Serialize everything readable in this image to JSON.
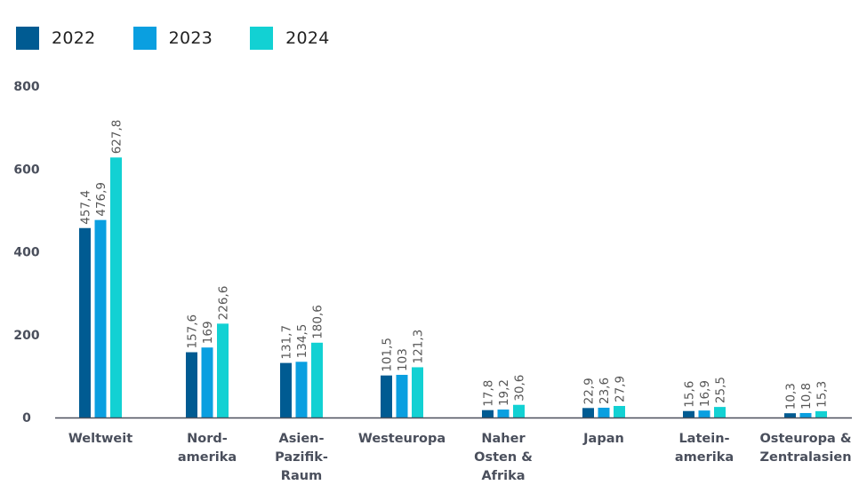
{
  "chart_data": {
    "type": "bar",
    "title": "",
    "xlabel": "",
    "ylabel": "",
    "ylim": [
      0,
      800
    ],
    "yticks": [
      "0",
      "200",
      "400",
      "600",
      "800"
    ],
    "ytick_values": [
      0,
      200,
      400,
      600,
      800
    ],
    "grid": false,
    "legend_position": "top-left",
    "categories": [
      [
        "Weltweit"
      ],
      [
        "Nord-",
        "amerika"
      ],
      [
        "Asien-",
        "Pazifik-",
        "Raum"
      ],
      [
        "Westeuropa"
      ],
      [
        "Naher",
        "Osten &",
        "Afrika"
      ],
      [
        "Japan"
      ],
      [
        "Latein-",
        "amerika"
      ],
      [
        "Osteuropa &",
        "Zentralasien"
      ]
    ],
    "series": [
      {
        "name": "2022",
        "color": "#005b92",
        "values": [
          457.4,
          157.6,
          131.7,
          101.5,
          17.8,
          22.9,
          15.6,
          10.3
        ],
        "labels": [
          "457,4",
          "157,6",
          "131,7",
          "101,5",
          "17,8",
          "22,9",
          "15,6",
          "10,3"
        ]
      },
      {
        "name": "2023",
        "color": "#0a9fe0",
        "values": [
          476.9,
          169,
          134.5,
          103,
          19.2,
          23.6,
          16.9,
          10.8
        ],
        "labels": [
          "476,9",
          "169",
          "134,5",
          "103",
          "19,2",
          "23,6",
          "16,9",
          "10,8"
        ]
      },
      {
        "name": "2024",
        "color": "#12d1d3",
        "values": [
          627.8,
          226.6,
          180.6,
          121.3,
          30.6,
          27.9,
          25.5,
          15.3
        ],
        "labels": [
          "627,8",
          "226,6",
          "180,6",
          "121,3",
          "30,6",
          "27,9",
          "25,5",
          "15,3"
        ]
      }
    ]
  },
  "legend": {
    "items": [
      {
        "label": "2022",
        "color": "#005b92"
      },
      {
        "label": "2023",
        "color": "#0a9fe0"
      },
      {
        "label": "2024",
        "color": "#12d1d3"
      }
    ]
  },
  "colors": {
    "axis": "#4a4f5c",
    "tick_text": "#4a4f5c",
    "value_text": "#555555"
  }
}
